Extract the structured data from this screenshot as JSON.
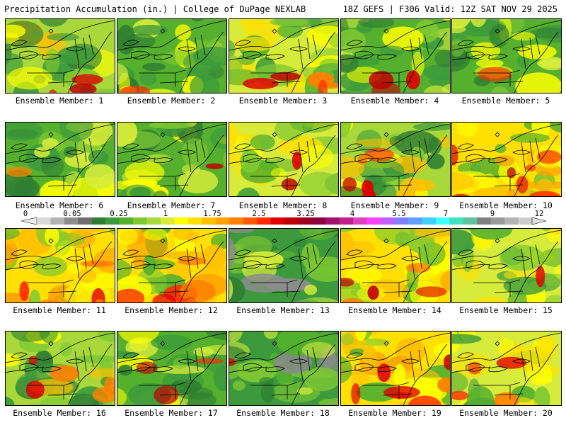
{
  "header": {
    "title_left": "Precipitation Accumulation (in.) | College of DuPage NEXLAB",
    "title_right": "18Z GEFS | F306 Valid: 12Z SAT NOV 29 2025"
  },
  "panels": [
    {
      "label": "Ensemble Member: 1",
      "theme": "mixed",
      "hot": 0.35
    },
    {
      "label": "Ensemble Member: 2",
      "theme": "green",
      "hot": 0.15
    },
    {
      "label": "Ensemble Member: 3",
      "theme": "yellow",
      "hot": 0.55
    },
    {
      "label": "Ensemble Member: 4",
      "theme": "green",
      "hot": 0.35
    },
    {
      "label": "Ensemble Member: 5",
      "theme": "green",
      "hot": 0.1
    },
    {
      "label": "Ensemble Member: 6",
      "theme": "green",
      "hot": 0.1
    },
    {
      "label": "Ensemble Member: 7",
      "theme": "green",
      "hot": 0.15
    },
    {
      "label": "Ensemble Member: 8",
      "theme": "yellow",
      "hot": 0.2
    },
    {
      "label": "Ensemble Member: 9",
      "theme": "mixed",
      "hot": 0.5
    },
    {
      "label": "Ensemble Member: 10",
      "theme": "orange",
      "hot": 0.8
    },
    {
      "label": "Ensemble Member: 11",
      "theme": "orange",
      "hot": 0.5
    },
    {
      "label": "Ensemble Member: 12",
      "theme": "orange",
      "hot": 0.85
    },
    {
      "label": "Ensemble Member: 13",
      "theme": "darkgreen",
      "hot": 0.0
    },
    {
      "label": "Ensemble Member: 14",
      "theme": "orange",
      "hot": 0.6
    },
    {
      "label": "Ensemble Member: 15",
      "theme": "yellow",
      "hot": 0.15
    },
    {
      "label": "Ensemble Member: 16",
      "theme": "mixed",
      "hot": 0.6
    },
    {
      "label": "Ensemble Member: 17",
      "theme": "green",
      "hot": 0.3
    },
    {
      "label": "Ensemble Member: 18",
      "theme": "darkgreen",
      "hot": 0.1
    },
    {
      "label": "Ensemble Member: 19",
      "theme": "orange",
      "hot": 0.75
    },
    {
      "label": "Ensemble Member: 20",
      "theme": "yellow",
      "hot": 0.45
    }
  ],
  "colorbar": {
    "ticks": [
      "0",
      "0.05",
      "0.25",
      "1",
      "1.75",
      "2.5",
      "3.25",
      "4",
      "5.5",
      "7",
      "9",
      "12"
    ],
    "colors": [
      "#d9d9d9",
      "#b3b3b3",
      "#8c8c8c",
      "#6e6e6e",
      "#2e7d32",
      "#3c9a3c",
      "#55b02e",
      "#7ec832",
      "#a8d83a",
      "#d7ec3a",
      "#ffff00",
      "#ffe000",
      "#ffc000",
      "#ffa000",
      "#ff7f00",
      "#ff5a00",
      "#ff2a00",
      "#e00000",
      "#c00000",
      "#a00020",
      "#8b0040",
      "#a0106a",
      "#c0208c",
      "#e040c0",
      "#ff40ff",
      "#c060ff",
      "#8080ff",
      "#60a0ff",
      "#40d0ff",
      "#40ffff",
      "#40e0c0",
      "#60c0a0",
      "#808080",
      "#9a9a9a",
      "#b4b4b4",
      "#cdcdcd"
    ]
  }
}
